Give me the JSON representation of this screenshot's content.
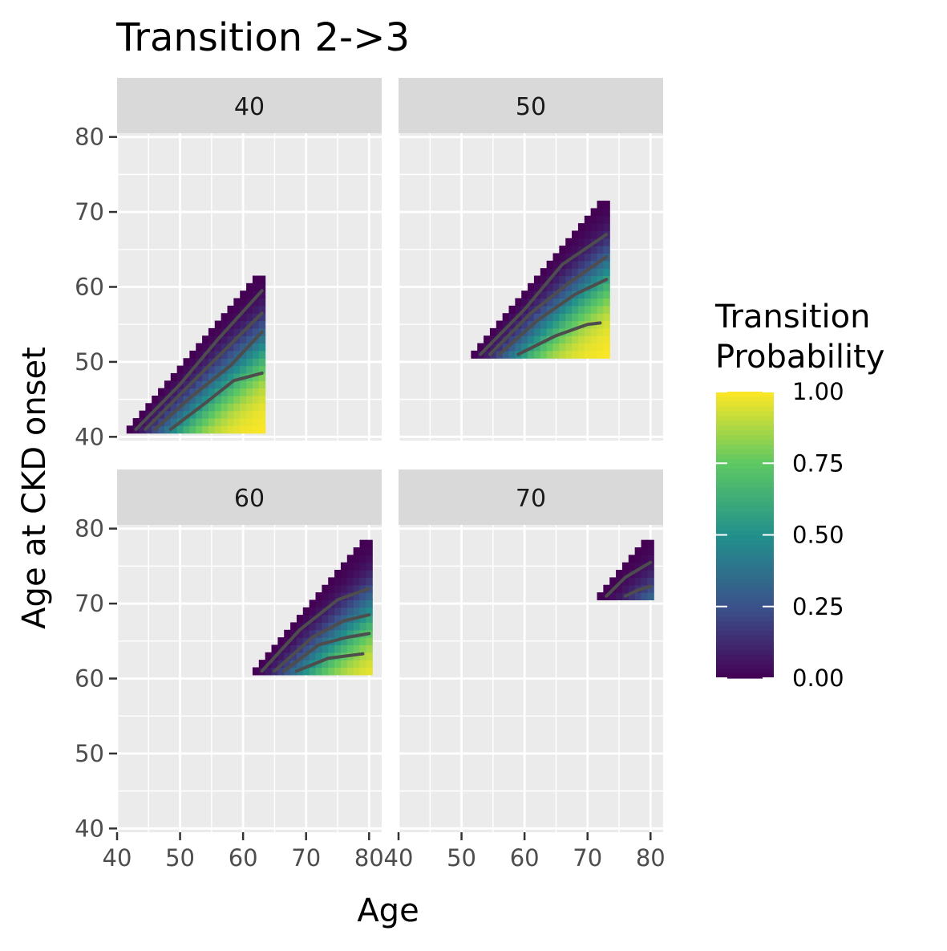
{
  "chart_data": {
    "type": "heatmap",
    "title": "Transition 2->3",
    "xlabel": "Age",
    "ylabel": "Age at CKD onset",
    "xlim": [
      40,
      82
    ],
    "ylim": [
      39.5,
      80.5
    ],
    "x_ticks": [
      40,
      50,
      60,
      70,
      80
    ],
    "y_ticks": [
      40,
      50,
      60,
      70,
      80
    ],
    "grid": true,
    "legend": {
      "title_lines": [
        "Transition",
        "Probability"
      ],
      "placement": "right",
      "ticks": [
        {
          "value": 0,
          "label": "0.00"
        },
        {
          "value": 0.25,
          "label": "0.25"
        },
        {
          "value": 0.5,
          "label": "0.50"
        },
        {
          "value": 0.75,
          "label": "0.75"
        },
        {
          "value": 1,
          "label": "1.00"
        }
      ],
      "colors": [
        "#440154",
        "#3B528B",
        "#21908C",
        "#5DC863",
        "#FDE725"
      ]
    },
    "contour_levels": [
      0.2,
      0.4,
      0.6,
      0.8
    ],
    "contour_color": "#4d4d4d",
    "panels": [
      {
        "label": "40",
        "onset_min": 41,
        "onset_max": 61,
        "age_max": 63,
        "contours": [
          {
            "level": 0.2,
            "points": [
              [
                43,
                41
              ],
              [
                50,
                47
              ],
              [
                56,
                53
              ],
              [
                63,
                59.5
              ]
            ]
          },
          {
            "level": 0.4,
            "points": [
              [
                44.5,
                41
              ],
              [
                51,
                46.5
              ],
              [
                57,
                51.5
              ],
              [
                63,
                56.5
              ]
            ]
          },
          {
            "level": 0.6,
            "points": [
              [
                46,
                41
              ],
              [
                52,
                45.5
              ],
              [
                58,
                49.5
              ],
              [
                63,
                54
              ]
            ]
          },
          {
            "level": 0.8,
            "points": [
              [
                48.5,
                41
              ],
              [
                54,
                44.5
              ],
              [
                58.5,
                47.5
              ],
              [
                63,
                48.5
              ]
            ]
          }
        ]
      },
      {
        "label": "50",
        "onset_min": 51,
        "onset_max": 71,
        "age_max": 73,
        "contours": [
          {
            "level": 0.2,
            "points": [
              [
                53,
                51
              ],
              [
                60,
                57
              ],
              [
                66,
                63
              ],
              [
                73,
                67
              ]
            ]
          },
          {
            "level": 0.4,
            "points": [
              [
                54.5,
                51
              ],
              [
                61,
                56.5
              ],
              [
                67,
                60.5
              ],
              [
                73,
                64
              ]
            ]
          },
          {
            "level": 0.6,
            "points": [
              [
                56,
                51
              ],
              [
                62,
                55.5
              ],
              [
                68,
                59
              ],
              [
                73,
                61
              ]
            ]
          },
          {
            "level": 0.8,
            "points": [
              [
                59,
                51
              ],
              [
                65,
                53.5
              ],
              [
                70,
                55
              ],
              [
                72,
                55.2
              ]
            ]
          }
        ]
      },
      {
        "label": "60",
        "onset_min": 61,
        "onset_max": 78,
        "age_max": 80,
        "contours": [
          {
            "level": 0.2,
            "points": [
              [
                63,
                61
              ],
              [
                69,
                66.5
              ],
              [
                75,
                70.5
              ],
              [
                80,
                72
              ]
            ]
          },
          {
            "level": 0.4,
            "points": [
              [
                65,
                61
              ],
              [
                71,
                65.5
              ],
              [
                76,
                67.7
              ],
              [
                80,
                68.5
              ]
            ]
          },
          {
            "level": 0.6,
            "points": [
              [
                66.5,
                61
              ],
              [
                72,
                64.5
              ],
              [
                76.5,
                65.5
              ],
              [
                80,
                66
              ]
            ]
          },
          {
            "level": 0.8,
            "points": [
              [
                68.5,
                61
              ],
              [
                73.5,
                62.7
              ],
              [
                79,
                63.3
              ]
            ]
          }
        ]
      },
      {
        "label": "70",
        "onset_min": 71,
        "onset_max": 78,
        "age_max": 80,
        "contours": [
          {
            "level": 0.2,
            "points": [
              [
                73,
                71
              ],
              [
                76,
                73.5
              ],
              [
                80,
                75.5
              ]
            ]
          },
          {
            "level": 0.4,
            "points": [
              [
                76,
                71
              ],
              [
                78,
                71.8
              ],
              [
                80,
                72.3
              ]
            ]
          }
        ]
      }
    ]
  }
}
